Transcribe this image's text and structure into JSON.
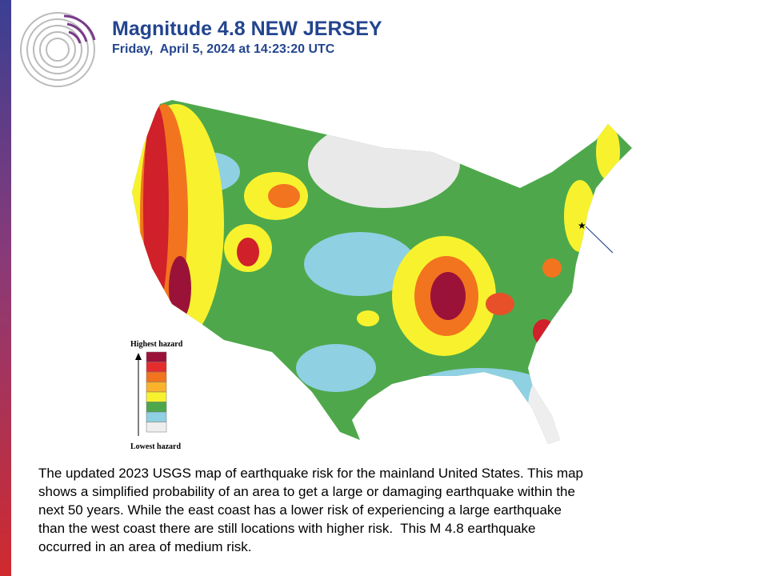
{
  "header": {
    "title": "Magnitude 4.8 NEW JERSEY",
    "subtitle": "Friday,  April 5, 2024 at 14:23:20 UTC"
  },
  "legend": {
    "top": "Highest hazard",
    "bottom": "Lowest hazard"
  },
  "caption": {
    "lines": [
      "The updated 2023 USGS map of earthquake risk for the mainland United States. This map",
      "shows a simplified probability of an area to get a large or damaging earthquake within the",
      "next 50 years. While the east coast has a lower risk of experiencing a large earthquake",
      "than the west coast there are still locations with higher risk.  This M 4.8 earthquake",
      "occurred in an area of medium risk."
    ]
  }
}
